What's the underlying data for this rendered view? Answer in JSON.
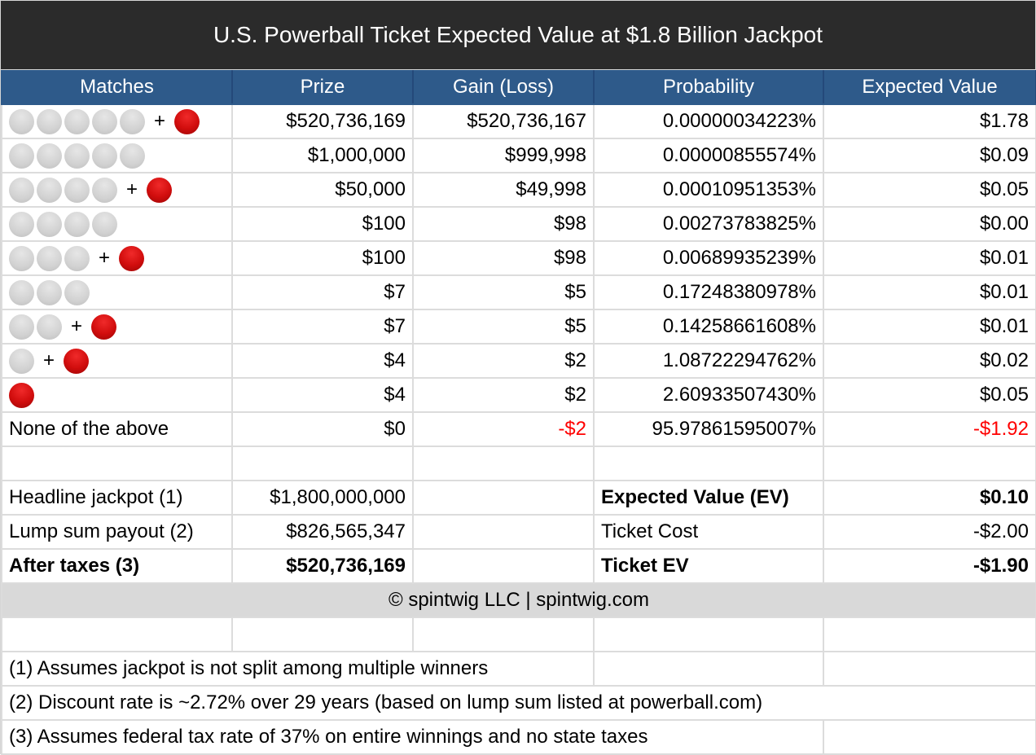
{
  "title": "U.S. Powerball Ticket Expected Value at $1.8 Billion Jackpot",
  "columns": [
    "Matches",
    "Prize",
    "Gain (Loss)",
    "Probability",
    "Expected Value"
  ],
  "rows": [
    {
      "white_balls": 5,
      "powerball": true,
      "prize": "$520,736,169",
      "gain": "$520,736,167",
      "probability": "0.00000034223%",
      "ev": "$1.78"
    },
    {
      "white_balls": 5,
      "powerball": false,
      "prize": "$1,000,000",
      "gain": "$999,998",
      "probability": "0.00000855574%",
      "ev": "$0.09"
    },
    {
      "white_balls": 4,
      "powerball": true,
      "prize": "$50,000",
      "gain": "$49,998",
      "probability": "0.00010951353%",
      "ev": "$0.05"
    },
    {
      "white_balls": 4,
      "powerball": false,
      "prize": "$100",
      "gain": "$98",
      "probability": "0.00273783825%",
      "ev": "$0.00"
    },
    {
      "white_balls": 3,
      "powerball": true,
      "prize": "$100",
      "gain": "$98",
      "probability": "0.00689935239%",
      "ev": "$0.01"
    },
    {
      "white_balls": 3,
      "powerball": false,
      "prize": "$7",
      "gain": "$5",
      "probability": "0.17248380978%",
      "ev": "$0.01"
    },
    {
      "white_balls": 2,
      "powerball": true,
      "prize": "$7",
      "gain": "$5",
      "probability": "0.14258661608%",
      "ev": "$0.01"
    },
    {
      "white_balls": 1,
      "powerball": true,
      "prize": "$4",
      "gain": "$2",
      "probability": "1.08722294762%",
      "ev": "$0.02"
    },
    {
      "white_balls": 0,
      "powerball": true,
      "prize": "$4",
      "gain": "$2",
      "probability": "2.60933507430%",
      "ev": "$0.05"
    }
  ],
  "none_row": {
    "label": "None of the above",
    "prize": "$0",
    "gain": "-$2",
    "probability": "95.97861595007%",
    "ev": "-$1.92"
  },
  "plus_sign": "+",
  "summary": {
    "headline_label": "Headline jackpot (1)",
    "headline_value": "$1,800,000,000",
    "lump_label": "Lump sum payout (2)",
    "lump_value": "$826,565,347",
    "after_tax_label": "After taxes (3)",
    "after_tax_value": "$520,736,169",
    "ev_label": "Expected Value (EV)",
    "ev_value": "$0.10",
    "cost_label": "Ticket Cost",
    "cost_value": "-$2.00",
    "ticket_ev_label": "Ticket EV",
    "ticket_ev_value": "-$1.90"
  },
  "copyright": "© spintwig LLC | spintwig.com",
  "notes": [
    "(1) Assumes jackpot is not split among multiple winners",
    "(2) Discount rate is ~2.72% over 29 years (based on lump sum listed at powerball.com)",
    "(3) Assumes federal tax rate of 37% on entire winnings and no state taxes"
  ],
  "colors": {
    "title_bg": "#2b2b2b",
    "header_bg": "#2e5a8a",
    "negative": "#ff0000",
    "footer_bg": "#d9d9d9"
  }
}
